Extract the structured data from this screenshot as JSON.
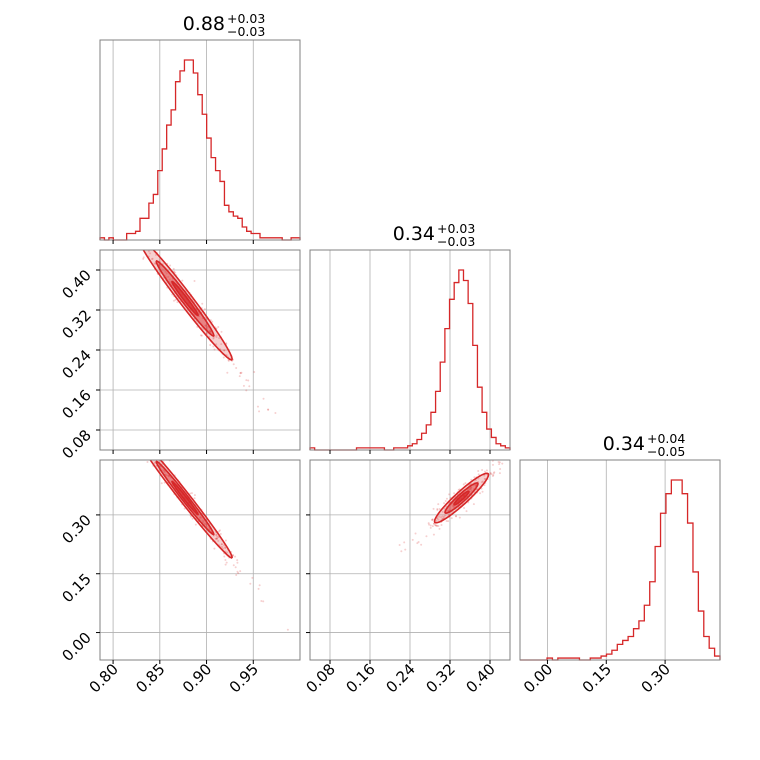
{
  "chart_data": {
    "type": "corner",
    "color": "#d62728",
    "params": [
      {
        "median": "0.88",
        "plus": "+0.03",
        "minus": "−0.03",
        "range": [
          0.786,
          1.0
        ],
        "ticks": [
          "0.80",
          "0.85",
          "0.90",
          "0.95"
        ],
        "tick_values": [
          0.8,
          0.85,
          0.9,
          0.95
        ]
      },
      {
        "median": "0.34",
        "plus": "+0.03",
        "minus": "−0.03",
        "range": [
          0.04,
          0.44
        ],
        "ticks": [
          "0.08",
          "0.16",
          "0.24",
          "0.32",
          "0.40"
        ],
        "tick_values": [
          0.08,
          0.16,
          0.24,
          0.32,
          0.4
        ]
      },
      {
        "median": "0.34",
        "plus": "+0.04",
        "minus": "−0.05",
        "range": [
          -0.07,
          0.44
        ],
        "ticks": [
          "0.00",
          "0.15",
          "0.30"
        ],
        "tick_values": [
          0.0,
          0.15,
          0.3
        ]
      }
    ],
    "histograms": [
      {
        "bins": [
          0.786,
          1.0
        ],
        "counts": [
          1,
          0,
          1,
          0,
          0,
          0,
          3,
          3,
          4,
          10,
          10,
          17,
          21,
          32,
          42,
          53,
          60,
          73,
          78,
          83,
          83,
          77,
          67,
          58,
          47,
          38,
          32,
          27,
          16,
          13,
          11,
          10,
          6,
          4,
          3,
          3,
          1,
          1,
          1,
          1,
          1,
          0,
          0,
          1,
          1
        ]
      },
      {
        "bins": [
          0.04,
          0.44
        ],
        "counts": [
          1,
          0,
          0,
          0,
          0,
          0,
          0,
          0,
          0,
          0,
          1,
          1,
          1,
          1,
          1,
          1,
          0,
          0,
          1,
          1,
          1,
          2,
          3,
          5,
          8,
          12,
          18,
          28,
          42,
          58,
          72,
          80,
          86,
          81,
          70,
          50,
          30,
          18,
          10,
          6,
          3,
          2,
          1
        ]
      },
      {
        "bins": [
          -0.07,
          0.44
        ],
        "counts": [
          0,
          0,
          0,
          0,
          0,
          1,
          0,
          1,
          1,
          1,
          1,
          0,
          0,
          1,
          1,
          2,
          3,
          5,
          8,
          10,
          12,
          16,
          20,
          28,
          40,
          58,
          75,
          85,
          92,
          92,
          85,
          70,
          45,
          25,
          12,
          6,
          2
        ]
      }
    ],
    "correlations": [
      {
        "x": 0,
        "y": 1,
        "center": [
          0.877,
          0.343
        ],
        "slope": -2.4,
        "spread": [
          0.028,
          0.012
        ]
      },
      {
        "x": 0,
        "y": 2,
        "center": [
          0.877,
          0.343
        ],
        "slope": -3.0,
        "spread": [
          0.028,
          0.012
        ]
      },
      {
        "x": 1,
        "y": 2,
        "center": [
          0.343,
          0.343
        ],
        "slope": 1.1,
        "spread": [
          0.03,
          0.012
        ]
      }
    ]
  }
}
